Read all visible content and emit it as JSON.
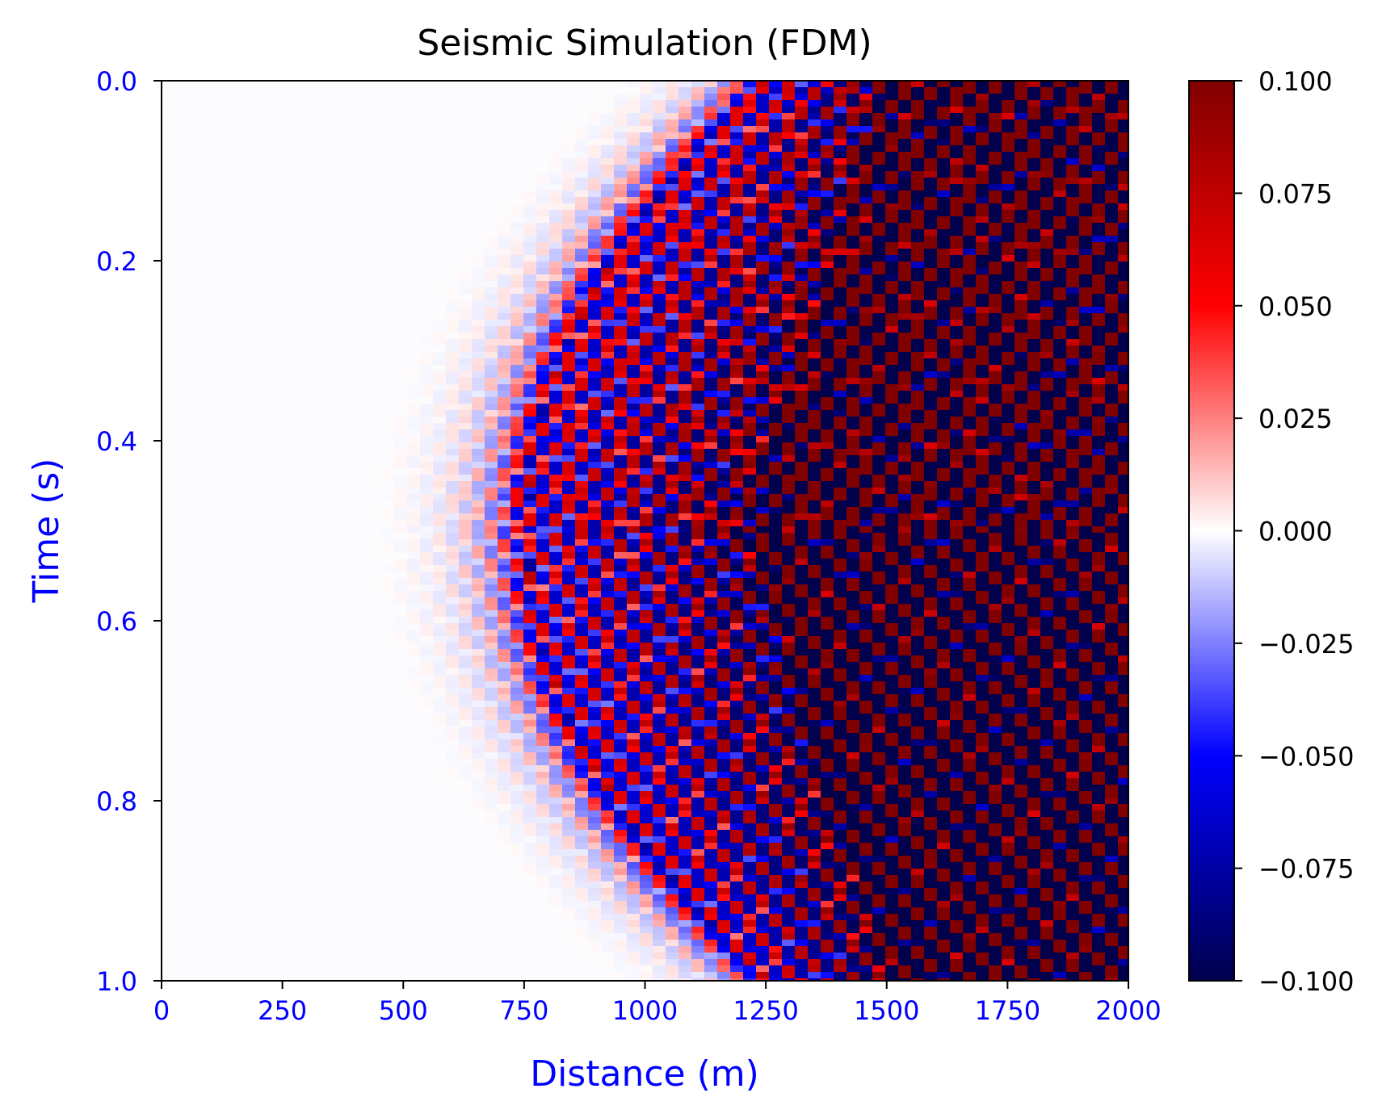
{
  "chart_data": {
    "type": "heatmap",
    "title": "Seismic Simulation (FDM)",
    "xlabel": "Distance (m)",
    "ylabel": "Time (s)",
    "xlim": [
      0,
      2000
    ],
    "ylim": [
      1.0,
      0.0
    ],
    "y_axis_inverted": true,
    "x_ticks": [
      0,
      250,
      500,
      750,
      1000,
      1250,
      1500,
      1750,
      2000
    ],
    "x_tick_labels": [
      "0",
      "250",
      "500",
      "750",
      "1000",
      "1250",
      "1500",
      "1750",
      "2000"
    ],
    "y_ticks": [
      0.0,
      0.2,
      0.4,
      0.6,
      0.8,
      1.0
    ],
    "y_tick_labels": [
      "0.0",
      "0.2",
      "0.4",
      "0.6",
      "0.8",
      "1.0"
    ],
    "axis_label_color": "#0000ff",
    "tick_label_color": "#0000ff",
    "grid": false,
    "colorbar": {
      "colormap": "seismic",
      "range": [
        -0.1,
        0.1
      ],
      "ticks": [
        0.1,
        0.075,
        0.05,
        0.025,
        0.0,
        -0.025,
        -0.05,
        -0.075,
        -0.1
      ],
      "tick_labels": [
        "0.100",
        "0.075",
        "0.050",
        "0.025",
        "0.000",
        "−0.025",
        "−0.050",
        "−0.075",
        "−0.100"
      ],
      "colors": {
        "high": "#800000",
        "mid_high": "#ff0000",
        "zero": "#ffffff",
        "mid_low": "#0000ff",
        "low": "#00004c"
      }
    },
    "field": {
      "description_type": "wavefront",
      "apex_distance_m": 760,
      "apex_time_s": 0.5,
      "front_distance_at_edges_m": 1260,
      "saturation_onset_distance_m": 1500,
      "saturated_value": 0.1
    }
  }
}
